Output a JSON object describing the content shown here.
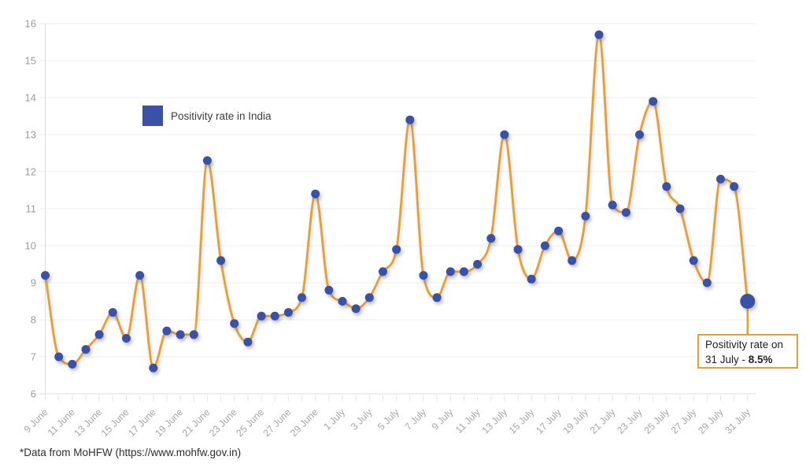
{
  "page": {
    "background": "#ffffff"
  },
  "legend": {
    "label": "Positivity rate in India"
  },
  "annotation": {
    "line1": "Positivity rate on",
    "line2_prefix": "31 July - ",
    "value": "8.5%",
    "border_color": "#E2A03A"
  },
  "footer": {
    "text": "*Data from MoHFW (https://www.mohfw.gov.in)"
  },
  "chart_data": {
    "type": "line",
    "series_name": "Positivity rate in India",
    "x": [
      "9 June",
      "10 June",
      "11 June",
      "12 June",
      "13 June",
      "14 June",
      "15 June",
      "16 June",
      "17 June",
      "18 June",
      "19 June",
      "20 June",
      "21 June",
      "22 June",
      "23 June",
      "24 June",
      "25 June",
      "26 June",
      "27 June",
      "28 June",
      "29 June",
      "30 June",
      "1 July",
      "2 July",
      "3 July",
      "4 July",
      "5 July",
      "6 July",
      "7 July",
      "8 July",
      "9 July",
      "10 July",
      "11 July",
      "12 July",
      "13 July",
      "14 July",
      "15 July",
      "16 July",
      "17 July",
      "18 July",
      "19 July",
      "20 July",
      "21 July",
      "22 July",
      "23 July",
      "24 July",
      "25 July",
      "26 July",
      "27 July",
      "28 July",
      "29 July",
      "30 July",
      "31 July"
    ],
    "values": [
      9.2,
      7.0,
      6.8,
      7.2,
      7.6,
      8.2,
      7.5,
      9.2,
      6.7,
      7.7,
      7.6,
      7.6,
      12.3,
      9.6,
      7.9,
      7.4,
      8.1,
      8.1,
      8.2,
      8.6,
      11.4,
      8.8,
      8.5,
      8.3,
      8.6,
      9.3,
      9.9,
      13.4,
      9.2,
      8.6,
      9.3,
      9.3,
      9.5,
      10.2,
      13.0,
      9.9,
      9.1,
      10.0,
      10.4,
      9.6,
      10.8,
      15.7,
      11.1,
      10.9,
      13.0,
      13.9,
      11.6,
      11.0,
      9.6,
      9.0,
      11.8,
      11.6,
      8.5
    ],
    "x_tick_step": 2,
    "y_ticks": [
      6,
      7,
      8,
      9,
      10,
      11,
      12,
      13,
      14,
      15,
      16
    ],
    "ylim": [
      6,
      16
    ],
    "grid": "horizontal",
    "legend_position": "top-left-inside",
    "line_color": "#E2A03A",
    "point_color": "#3B51A5",
    "highlight_last_point": true
  }
}
